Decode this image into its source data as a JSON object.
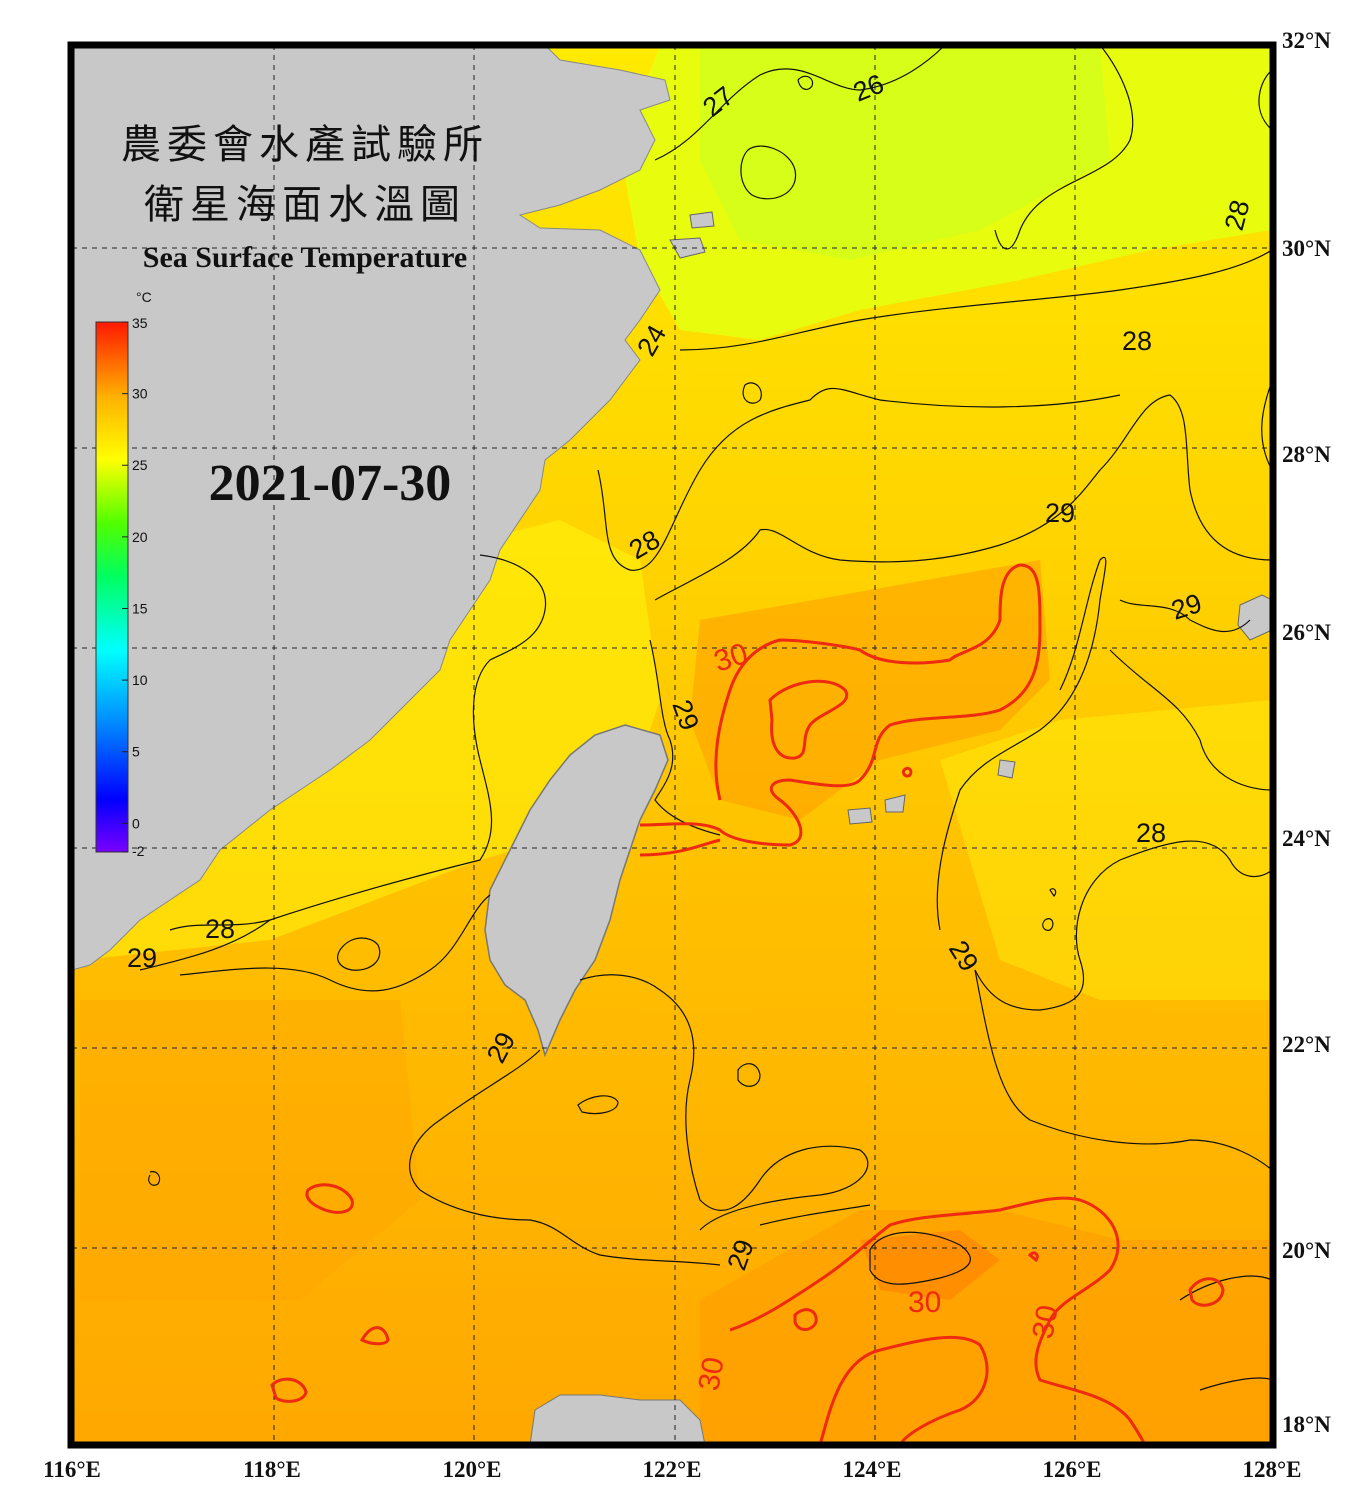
{
  "header": {
    "title_cn_1": "農委會水產試驗所",
    "title_cn_2": "衛星海面水溫圖",
    "title_en": "Sea Surface Temperature",
    "date": "2021-07-30"
  },
  "colorbar": {
    "unit": "°C",
    "min": -2,
    "max": 35,
    "ticks": [
      "35",
      "30",
      "25",
      "20",
      "15",
      "10",
      "5",
      "0",
      "-2"
    ]
  },
  "axes": {
    "lon_labels": [
      "116°E",
      "118°E",
      "120°E",
      "122°E",
      "124°E",
      "126°E",
      "128°E"
    ],
    "lat_labels": [
      "32°N",
      "30°N",
      "28°N",
      "26°N",
      "24°N",
      "22°N",
      "20°N",
      "18°N"
    ]
  },
  "contour_labels": [
    "27",
    "26",
    "28",
    "24",
    "28",
    "28",
    "29",
    "29",
    "30",
    "29",
    "28",
    "29",
    "28",
    "29",
    "29",
    "29",
    "30",
    "30",
    "30"
  ],
  "colors": {
    "warm": "#ffa800",
    "yellow": "#ffff00",
    "land": "#c8c8c8",
    "contour_30": "#ee2a10"
  }
}
